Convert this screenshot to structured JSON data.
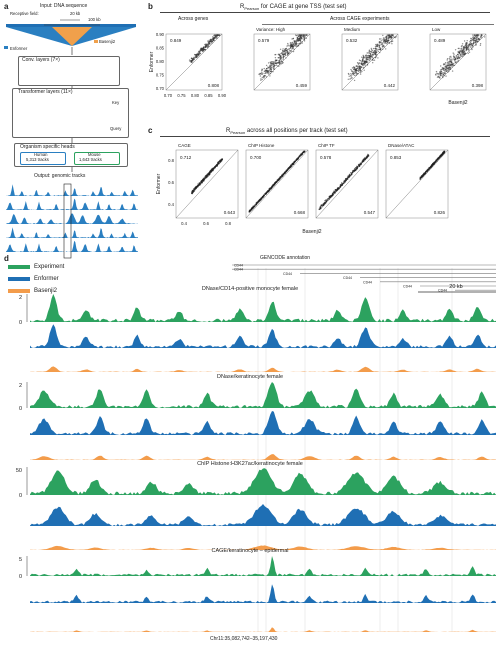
{
  "panel_a": {
    "label": "a",
    "input_title": "Input: DNA sequence",
    "receptive_field": "Receptive field:",
    "kb20": "20 kb",
    "kb100": "100 kb",
    "enformer_label": "Enformer",
    "basenji_label": "Basenji2",
    "conv_layers": "Conv. layers (7×)",
    "transformer_layers": "Transformer layers (11×)",
    "key": "Key",
    "query": "Query",
    "heads_title": "Organism specific heads",
    "human": "Human",
    "human_tracks": "5,313 tracks",
    "mouse": "Mouse",
    "mouse_tracks": "1,643 tracks",
    "output": "Output: genomic tracks",
    "colors": {
      "enformer": "#2a7fc1",
      "basenji": "#f0a04b",
      "green": "#2ca25f"
    }
  },
  "panel_b": {
    "label": "b",
    "title_prefix": "R",
    "title_sub": "Pearson",
    "title_rest": " for CAGE at gene TSS (test set)",
    "across_genes": "Across genes",
    "across_exp": "Across CAGE experiments",
    "ylabel": "Enformer",
    "xlabel": "Basenji2",
    "scatters": [
      {
        "title": "",
        "top": "0.849",
        "bottom": "0.808"
      },
      {
        "title": "Variance: High",
        "top": "0.579",
        "bottom": "0.459"
      },
      {
        "title": "Medium",
        "top": "0.532",
        "bottom": "0.442"
      },
      {
        "title": "Low",
        "top": "0.489",
        "bottom": "0.398"
      }
    ],
    "yticks": [
      "0.90",
      "0.85",
      "0.80",
      "0.75",
      "0.70"
    ],
    "xticks": [
      "0.70",
      "0.75",
      "0.80",
      "0.85",
      "0.90"
    ]
  },
  "panel_c": {
    "label": "c",
    "title_prefix": "R",
    "title_sub": "Pearson",
    "title_rest": " across all positions per track (test set)",
    "ylabel": "Enformer",
    "xlabel": "Basenji2",
    "scatters": [
      {
        "title": "CAGE",
        "top": "0.712",
        "bottom": "0.643"
      },
      {
        "title": "ChIP Histone",
        "top": "0.700",
        "bottom": "0.668"
      },
      {
        "title": "ChIP TF",
        "top": "0.578",
        "bottom": "0.547"
      },
      {
        "title": "DNase/ATAC",
        "top": "0.853",
        "bottom": "0.826"
      }
    ],
    "yticks": [
      "0.8",
      "0.6",
      "0.4"
    ],
    "xticks": [
      "0.4",
      "0.6",
      "0.8"
    ]
  },
  "panel_d": {
    "label": "d",
    "legend": [
      {
        "name": "Experiment",
        "color": "#2ca25f"
      },
      {
        "name": "Enformer",
        "color": "#1f6fb4"
      },
      {
        "name": "Basenji2",
        "color": "#f39c4b"
      }
    ],
    "gencode": "GENCODE annotation",
    "gene_labels": [
      "CD44",
      "CD44",
      "CD44",
      "CD44",
      "CD44",
      "CD44",
      "CD44"
    ],
    "scale": "20 kb",
    "tracks": [
      {
        "title": "DNase/CD14-positive monocyte female",
        "yticks": [
          "2",
          "0"
        ]
      },
      {
        "title": "DNase/keratinocyte female",
        "yticks": [
          "2",
          "0"
        ]
      },
      {
        "title": "ChIP Histone:H3K27ac/keratinocyte female",
        "yticks": [
          "50",
          "0"
        ]
      },
      {
        "title": "CAGE/keratinocyte – epidermal",
        "yticks": [
          "5",
          "0"
        ]
      }
    ],
    "coords": "Chr11:35,082,742–35,197,430"
  }
}
